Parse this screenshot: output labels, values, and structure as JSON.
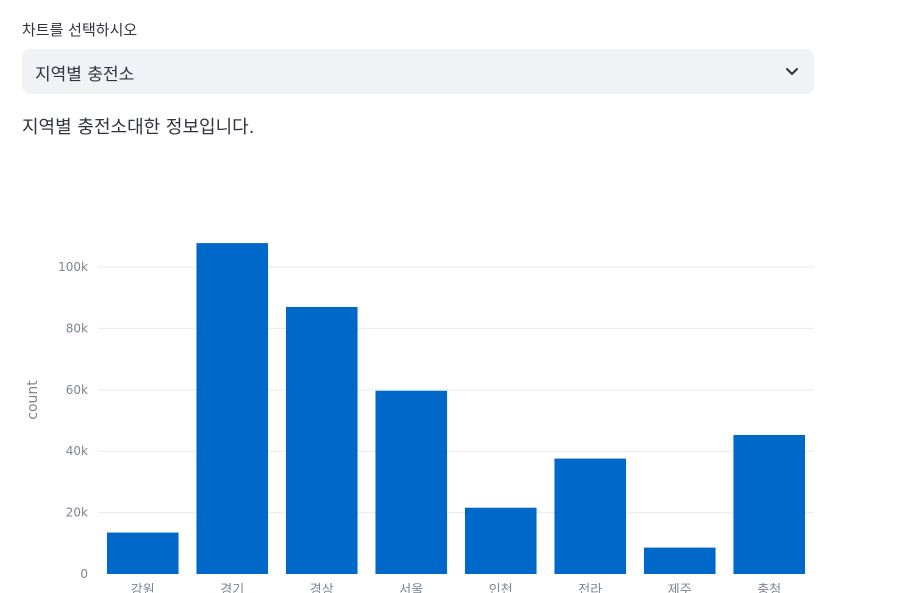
{
  "select": {
    "label": "차트를 선택하시오",
    "value": "지역별 충전소"
  },
  "info_text": "지역별 충전소대한 정보입니다.",
  "colors": {
    "bar": "#0068c9",
    "grid": "#e8e9ee",
    "tick": "#7d8591",
    "text": "#31333f"
  },
  "chart_data": {
    "type": "bar",
    "categories": [
      "강원",
      "경기",
      "경상",
      "서울",
      "인천",
      "전라",
      "제주",
      "충청"
    ],
    "values": [
      13500,
      107800,
      87000,
      59700,
      21600,
      37600,
      8600,
      45300
    ],
    "ylabel": "count",
    "xlabel": "",
    "ylim": [
      0,
      115000
    ],
    "yticks": [
      0,
      20000,
      40000,
      60000,
      80000,
      100000
    ],
    "ytick_labels": [
      "0",
      "20k",
      "40k",
      "60k",
      "80k",
      "100k"
    ],
    "grid": true
  }
}
